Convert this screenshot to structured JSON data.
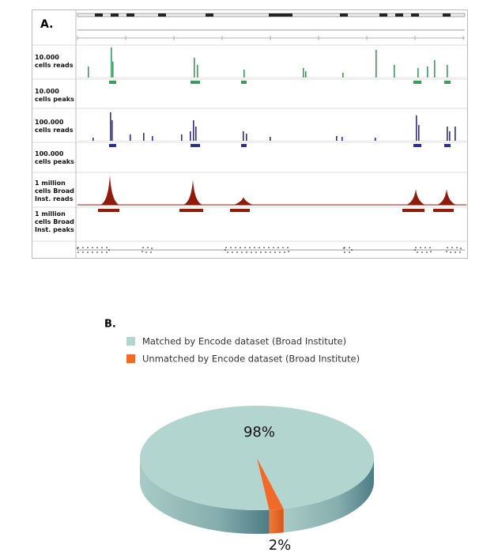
{
  "panel_a": {
    "label": "A.",
    "tracks": [
      "10.000 cells reads",
      "10.000 cells peaks",
      "100.000 cells reads",
      "100.000 cells peaks",
      "1 million cells Broad Inst. reads",
      "1 million cells Broad Inst. peaks"
    ]
  },
  "chart_data": {
    "type": "pie",
    "panel_label": "B.",
    "categories": [
      "Matched by Encode dataset (Broad Institute)",
      "Unmatched by Encode dataset (Broad Institute)"
    ],
    "values": [
      98,
      2
    ],
    "value_labels": [
      "98%",
      "2%"
    ],
    "colors": [
      "#b2d5d0",
      "#f26a2a"
    ]
  }
}
